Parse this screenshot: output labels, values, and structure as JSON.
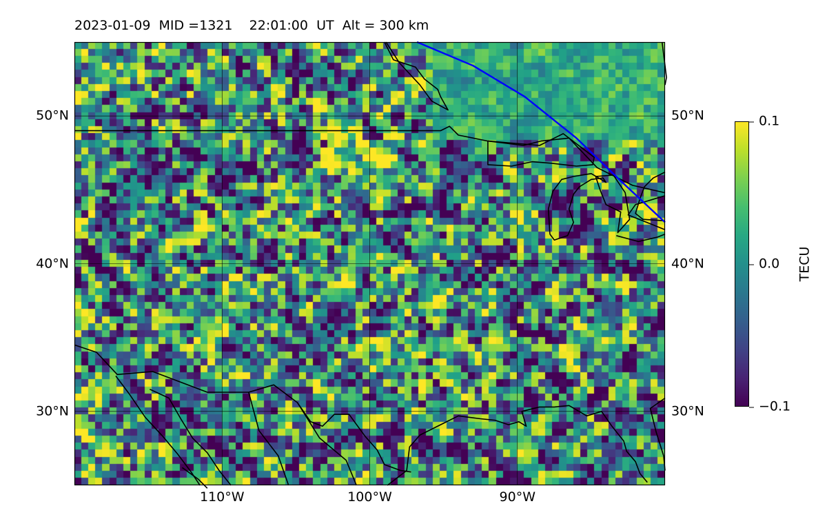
{
  "header": {
    "date": "2023-01-09",
    "mid": "MID =1321",
    "time": "22:01:00",
    "ut": "UT",
    "alt": "Alt = 300 km"
  },
  "map": {
    "lon_range": [
      -120,
      -80
    ],
    "lat_range": [
      25,
      55
    ],
    "lat_ticks": [
      {
        "value": 30,
        "label": "30°N"
      },
      {
        "value": 40,
        "label": "40°N"
      },
      {
        "value": 50,
        "label": "50°N"
      }
    ],
    "lon_ticks": [
      {
        "value": -110,
        "label": "110°W"
      },
      {
        "value": -100,
        "label": "100°W"
      },
      {
        "value": -90,
        "label": "90°W"
      }
    ],
    "gridlines": true,
    "colormap": "viridis",
    "terminator_color": "#0000ff",
    "coastline_color": "#000000",
    "terminator": [
      [
        -96.8,
        55.0
      ],
      [
        -93.0,
        53.4
      ],
      [
        -89.5,
        51.3
      ],
      [
        -86.0,
        48.5
      ],
      [
        -83.0,
        45.6
      ],
      [
        -80.0,
        42.8
      ]
    ],
    "borders": [
      [
        [
          -120.0,
          49.0
        ],
        [
          -95.2,
          49.0
        ],
        [
          -94.6,
          49.3
        ],
        [
          -94.0,
          48.7
        ],
        [
          -92.0,
          48.3
        ],
        [
          -89.6,
          48.0
        ],
        [
          -88.4,
          48.3
        ],
        [
          -86.5,
          48.5
        ],
        [
          -84.6,
          46.5
        ],
        [
          -82.2,
          45.3
        ],
        [
          -80.0,
          44.8
        ]
      ],
      [
        [
          -120.0,
          34.5
        ],
        [
          -118.5,
          34.0
        ],
        [
          -117.1,
          32.5
        ],
        [
          -114.7,
          32.7
        ],
        [
          -111.0,
          31.3
        ],
        [
          -108.2,
          31.3
        ],
        [
          -106.5,
          31.8
        ],
        [
          -104.9,
          30.6
        ],
        [
          -104.0,
          29.3
        ],
        [
          -103.2,
          29.0
        ],
        [
          -102.4,
          29.8
        ],
        [
          -101.4,
          29.8
        ],
        [
          -100.3,
          28.3
        ],
        [
          -99.5,
          27.4
        ],
        [
          -99.0,
          26.4
        ],
        [
          -97.9,
          26.0
        ],
        [
          -97.2,
          25.9
        ]
      ],
      [
        [
          -98.8,
          25.0
        ],
        [
          -97.5,
          26.0
        ],
        [
          -97.3,
          27.6
        ],
        [
          -96.6,
          28.4
        ],
        [
          -95.0,
          29.2
        ],
        [
          -94.0,
          29.7
        ],
        [
          -92.5,
          29.5
        ],
        [
          -91.5,
          29.4
        ],
        [
          -90.6,
          29.1
        ],
        [
          -89.9,
          29.3
        ],
        [
          -89.4,
          29.0
        ],
        [
          -89.7,
          30.0
        ],
        [
          -88.5,
          30.3
        ],
        [
          -87.5,
          30.3
        ],
        [
          -86.5,
          30.4
        ],
        [
          -85.3,
          29.7
        ],
        [
          -84.3,
          30.0
        ],
        [
          -83.6,
          29.0
        ],
        [
          -82.8,
          28.0
        ],
        [
          -82.6,
          27.3
        ],
        [
          -82.0,
          26.6
        ],
        [
          -81.7,
          25.8
        ],
        [
          -81.2,
          25.2
        ]
      ],
      [
        [
          -80.0,
          30.9
        ],
        [
          -81.0,
          30.2
        ],
        [
          -80.6,
          28.6
        ],
        [
          -80.1,
          27.0
        ],
        [
          -80.0,
          26.0
        ]
      ],
      [
        [
          -117.2,
          32.4
        ],
        [
          -116.3,
          31.2
        ],
        [
          -115.2,
          29.6
        ],
        [
          -114.0,
          28.3
        ],
        [
          -113.0,
          27.1
        ],
        [
          -112.1,
          25.9
        ],
        [
          -111.5,
          25.0
        ]
      ],
      [
        [
          -114.9,
          31.5
        ],
        [
          -113.6,
          30.9
        ],
        [
          -112.8,
          29.5
        ],
        [
          -112.0,
          28.2
        ],
        [
          -111.0,
          27.2
        ],
        [
          -110.2,
          26.0
        ],
        [
          -109.4,
          25.0
        ]
      ],
      [
        [
          -112.7,
          26.2
        ],
        [
          -111.6,
          25.4
        ],
        [
          -111.0,
          24.8
        ]
      ],
      [
        [
          -108.2,
          31.3
        ],
        [
          -107.5,
          28.7
        ],
        [
          -106.2,
          27.0
        ],
        [
          -105.5,
          25.0
        ]
      ],
      [
        [
          -104.9,
          30.6
        ],
        [
          -103.4,
          28.2
        ],
        [
          -101.6,
          26.7
        ],
        [
          -100.9,
          25.0
        ]
      ],
      [
        [
          -99.0,
          55.0
        ],
        [
          -98.4,
          53.8
        ],
        [
          -96.9,
          53.3
        ],
        [
          -96.3,
          52.5
        ],
        [
          -95.4,
          51.8
        ],
        [
          -95.2,
          51.3
        ],
        [
          -94.7,
          50.4
        ],
        [
          -95.8,
          51.0
        ],
        [
          -96.6,
          52.1
        ],
        [
          -98.0,
          53.6
        ],
        [
          -98.9,
          55.0
        ]
      ],
      [
        [
          -92.0,
          48.3
        ],
        [
          -88.5,
          48.0
        ],
        [
          -86.9,
          48.8
        ],
        [
          -84.8,
          47.2
        ],
        [
          -84.9,
          46.7
        ],
        [
          -86.0,
          46.6
        ],
        [
          -87.7,
          46.8
        ],
        [
          -89.0,
          46.9
        ],
        [
          -90.4,
          46.6
        ],
        [
          -92.0,
          46.7
        ],
        [
          -92.0,
          48.3
        ]
      ],
      [
        [
          -87.8,
          42.0
        ],
        [
          -87.5,
          41.6
        ],
        [
          -86.6,
          41.9
        ],
        [
          -86.2,
          42.8
        ],
        [
          -86.5,
          43.7
        ],
        [
          -86.2,
          44.7
        ],
        [
          -85.8,
          45.2
        ],
        [
          -85.0,
          45.7
        ],
        [
          -84.2,
          45.8
        ],
        [
          -84.0,
          45.5
        ],
        [
          -85.0,
          46.1
        ],
        [
          -86.2,
          45.9
        ],
        [
          -87.0,
          45.7
        ],
        [
          -87.6,
          44.9
        ],
        [
          -87.9,
          43.7
        ],
        [
          -87.8,
          42.0
        ]
      ],
      [
        [
          -84.7,
          45.9
        ],
        [
          -83.5,
          46.0
        ],
        [
          -82.7,
          44.8
        ],
        [
          -82.4,
          43.0
        ],
        [
          -83.2,
          42.1
        ],
        [
          -83.0,
          43.5
        ],
        [
          -84.0,
          44.0
        ],
        [
          -84.4,
          45.0
        ],
        [
          -84.7,
          45.9
        ]
      ],
      [
        [
          -80.0,
          46.2
        ],
        [
          -80.8,
          45.8
        ],
        [
          -81.4,
          45.2
        ],
        [
          -81.7,
          44.4
        ],
        [
          -82.0,
          43.4
        ],
        [
          -81.5,
          43.0
        ],
        [
          -80.0,
          42.9
        ]
      ],
      [
        [
          -80.0,
          44.6
        ],
        [
          -82.0,
          44.0
        ],
        [
          -82.5,
          43.3
        ],
        [
          -81.0,
          42.7
        ],
        [
          -80.0,
          42.3
        ]
      ],
      [
        [
          -83.3,
          41.9
        ],
        [
          -81.8,
          41.5
        ],
        [
          -80.5,
          41.8
        ],
        [
          -80.0,
          42.0
        ]
      ],
      [
        [
          -80.2,
          55.0
        ],
        [
          -79.9,
          52.6
        ],
        [
          -80.0,
          52.1
        ]
      ]
    ]
  },
  "colorbar": {
    "label": "TECU",
    "min": -0.1,
    "max": 0.1,
    "ticks": [
      {
        "value": 0.1,
        "label": "0.1"
      },
      {
        "value": 0.0,
        "label": "0.0"
      },
      {
        "value": -0.1,
        "label": "−0.1"
      }
    ]
  }
}
